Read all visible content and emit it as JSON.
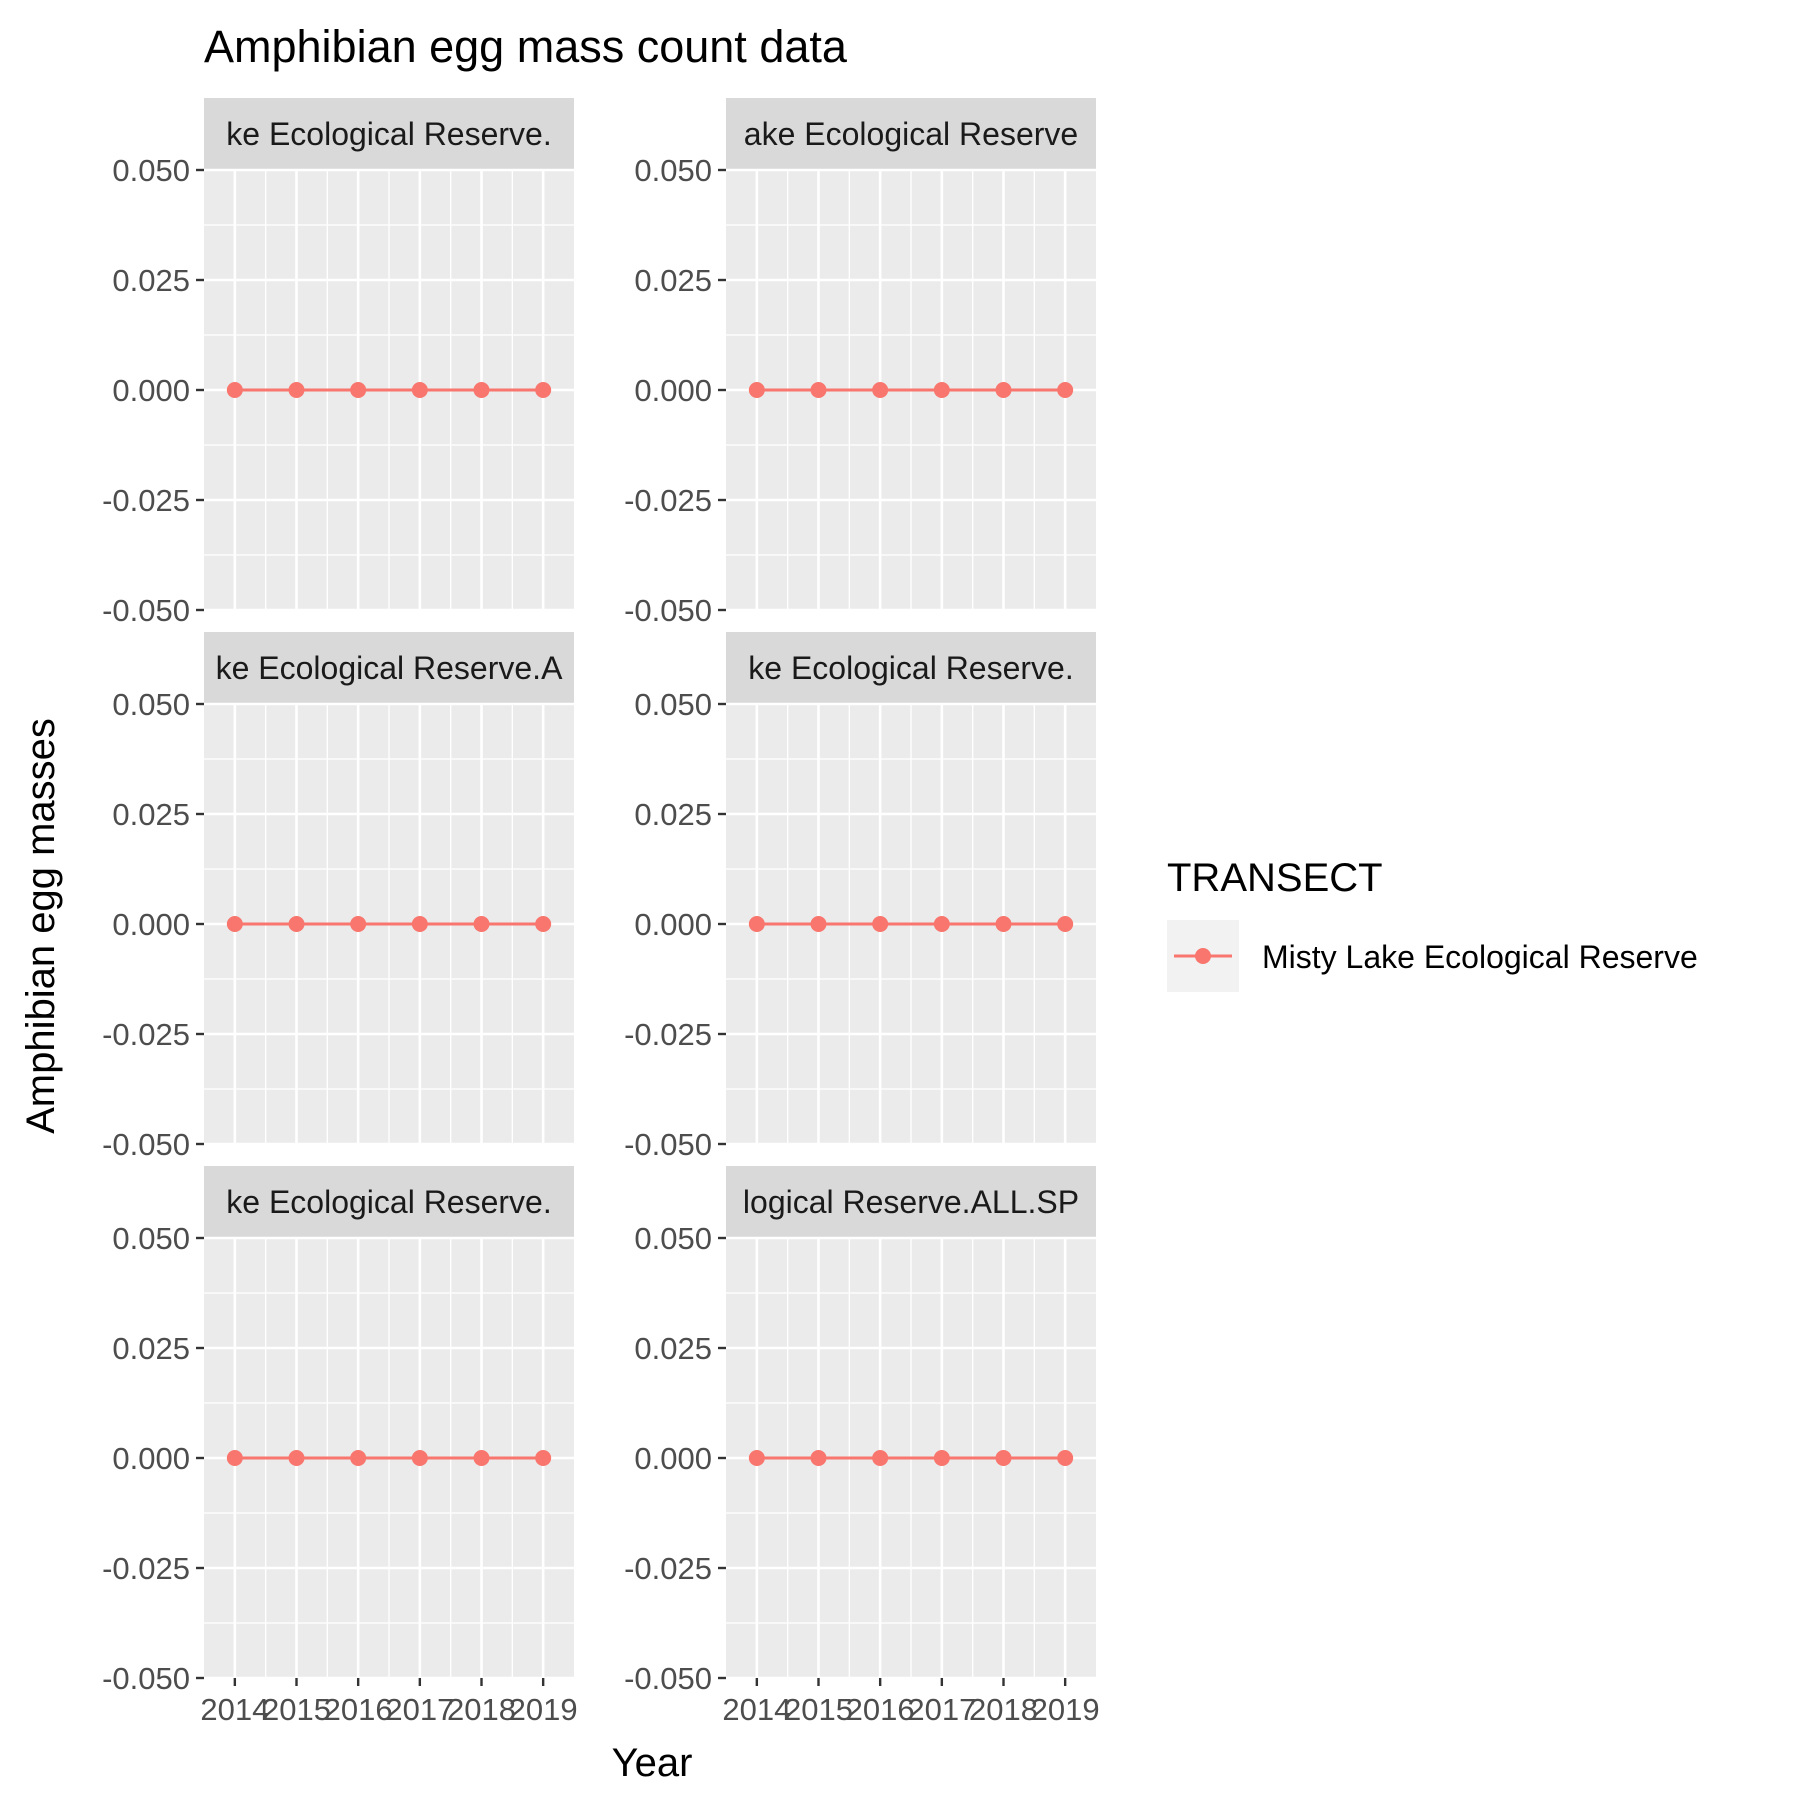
{
  "chart_data": {
    "type": "line",
    "title": "Amphibian egg mass count data",
    "xlabel": "Year",
    "ylabel": "Amphibian egg masses",
    "x": [
      2014,
      2015,
      2016,
      2017,
      2018,
      2019
    ],
    "x_tick_labels": [
      "2014",
      "2015",
      "2016",
      "2017",
      "2018",
      "2019"
    ],
    "y_tick_labels": [
      "-0.050",
      "-0.025",
      "0.000",
      "0.025",
      "0.050"
    ],
    "y_ticks": [
      -0.05,
      -0.025,
      0,
      0.025,
      0.05
    ],
    "ylim": [
      -0.05,
      0.05
    ],
    "grid": true,
    "legend": {
      "title": "TRANSECT",
      "position": "right",
      "entries": [
        {
          "label": "Misty Lake Ecological Reserve",
          "color": "#F8766D"
        }
      ]
    },
    "panels": [
      {
        "strip": "ke Ecological Reserve.",
        "series": [
          {
            "name": "Misty Lake Ecological Reserve",
            "values": [
              0,
              0,
              0,
              0,
              0,
              0
            ]
          }
        ]
      },
      {
        "strip": "ake Ecological Reserve",
        "series": [
          {
            "name": "Misty Lake Ecological Reserve",
            "values": [
              0,
              0,
              0,
              0,
              0,
              0
            ]
          }
        ]
      },
      {
        "strip": "ke Ecological Reserve.A",
        "series": [
          {
            "name": "Misty Lake Ecological Reserve",
            "values": [
              0,
              0,
              0,
              0,
              0,
              0
            ]
          }
        ]
      },
      {
        "strip": "ke Ecological Reserve.",
        "series": [
          {
            "name": "Misty Lake Ecological Reserve",
            "values": [
              0,
              0,
              0,
              0,
              0,
              0
            ]
          }
        ]
      },
      {
        "strip": "ke Ecological Reserve.",
        "series": [
          {
            "name": "Misty Lake Ecological Reserve",
            "values": [
              0,
              0,
              0,
              0,
              0,
              0
            ]
          }
        ]
      },
      {
        "strip": "logical Reserve.ALL.SP",
        "series": [
          {
            "name": "Misty Lake Ecological Reserve",
            "values": [
              0,
              0,
              0,
              0,
              0,
              0
            ]
          }
        ]
      }
    ],
    "colors": {
      "series": "#F8766D",
      "panel_bg": "#EBEBEB",
      "strip_bg": "#D9D9D9",
      "grid": "#FFFFFF",
      "legend_key_bg": "#F2F2F2"
    }
  }
}
